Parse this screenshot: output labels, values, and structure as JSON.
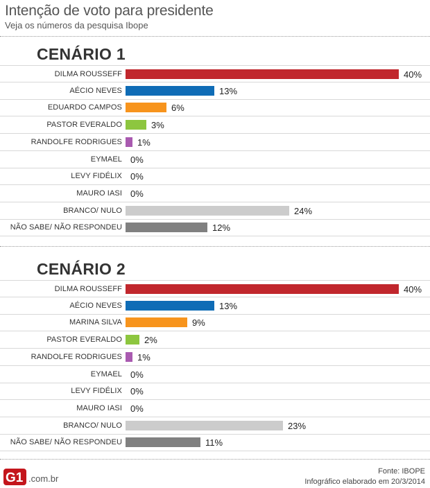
{
  "header": {
    "title": "Intenção de voto para presidente",
    "subtitle": "Veja os números da pesquisa Ibope"
  },
  "footer": {
    "logo_text": "G1",
    "domain": ".com.br",
    "source": "Fonte: IBOPE",
    "credit": "Infográfico elaborado em 20/3/2014"
  },
  "colors": {
    "dilma": "#c1272d",
    "aecio": "#0f6cb6",
    "orange": "#f7941d",
    "green": "#8dc63f",
    "purple": "#a95ab0",
    "branco": "#cccccc",
    "naosabe": "#808080",
    "logo_red": "#c4161c"
  },
  "chart_data": [
    {
      "type": "bar",
      "orientation": "horizontal",
      "title": "CENÁRIO 1",
      "unit": "%",
      "xlim": [
        0,
        40
      ],
      "categories": [
        "DILMA ROUSSEFF",
        "AÉCIO NEVES",
        "EDUARDO CAMPOS",
        "PASTOR EVERALDO",
        "RANDOLFE RODRIGUES",
        "EYMAEL",
        "LEVY FIDÉLIX",
        "MAURO IASI",
        "BRANCO/ NULO",
        "NÃO SABE/ NÃO RESPONDEU"
      ],
      "values": [
        40,
        13,
        6,
        3,
        1,
        0,
        0,
        0,
        24,
        12
      ],
      "labels": [
        "40%",
        "13%",
        "6%",
        "3%",
        "1%",
        "0%",
        "0%",
        "0%",
        "24%",
        "12%"
      ],
      "colors": [
        "#c1272d",
        "#0f6cb6",
        "#f7941d",
        "#8dc63f",
        "#a95ab0",
        "#cccccc",
        "#cccccc",
        "#cccccc",
        "#cccccc",
        "#808080"
      ]
    },
    {
      "type": "bar",
      "orientation": "horizontal",
      "title": "CENÁRIO 2",
      "unit": "%",
      "xlim": [
        0,
        40
      ],
      "categories": [
        "DILMA ROUSSEFF",
        "AÉCIO NEVES",
        "MARINA SILVA",
        "PASTOR EVERALDO",
        "RANDOLFE RODRIGUES",
        "EYMAEL",
        "LEVY FIDÉLIX",
        "MAURO IASI",
        "BRANCO/ NULO",
        "NÃO SABE/ NÃO RESPONDEU"
      ],
      "values": [
        40,
        13,
        9,
        2,
        1,
        0,
        0,
        0,
        23,
        11
      ],
      "labels": [
        "40%",
        "13%",
        "9%",
        "2%",
        "1%",
        "0%",
        "0%",
        "0%",
        "23%",
        "11%"
      ],
      "colors": [
        "#c1272d",
        "#0f6cb6",
        "#f7941d",
        "#8dc63f",
        "#a95ab0",
        "#cccccc",
        "#cccccc",
        "#cccccc",
        "#cccccc",
        "#808080"
      ]
    }
  ]
}
